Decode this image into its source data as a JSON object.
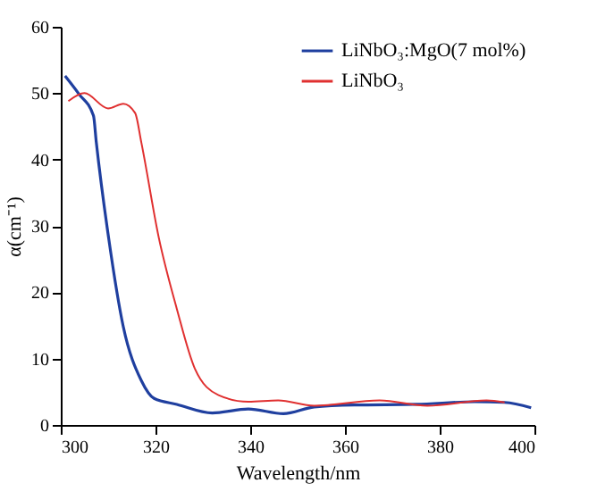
{
  "chart_data": {
    "type": "line",
    "xlabel": "Wavelength/nm",
    "ylabel": "α(cm⁻¹)",
    "xlim": [
      300,
      400
    ],
    "ylim": [
      0,
      60
    ],
    "xticks": [
      300,
      320,
      340,
      360,
      380,
      400
    ],
    "yticks": [
      0,
      10,
      20,
      30,
      40,
      50,
      60
    ],
    "grid": false,
    "legend": "top right",
    "marker": "none",
    "line_style": "solid",
    "series": [
      {
        "name": "LiNbO₃:MgO(7 mol%)",
        "color": "#1f3f9f",
        "x": [
          300.9,
          303.8,
          306.9,
          307.5,
          310.1,
          313.2,
          317,
          319.7,
          324.5,
          332,
          339.6,
          347,
          353.5,
          362,
          375,
          387.4,
          393.7,
          399.3
        ],
        "values": [
          52.6,
          49.9,
          46.6,
          42.6,
          28.2,
          14.8,
          6.7,
          4,
          3.1,
          1.8,
          2.4,
          1.7,
          2.7,
          3,
          3.1,
          3.5,
          3.4,
          2.6
        ]
      },
      {
        "name": "LiNbO₃",
        "color": "#e03030",
        "x": [
          301.6,
          305,
          310,
          313.2,
          315.7,
          317,
          320.7,
          324.5,
          328.3,
          333.3,
          339.6,
          345.9,
          353.5,
          367.3,
          377.4,
          389.9,
          393.7
        ],
        "values": [
          48.8,
          50,
          47.7,
          48.4,
          47,
          42.6,
          28.2,
          17.5,
          8.5,
          4.5,
          3.5,
          3.7,
          2.9,
          3.7,
          2.9,
          3.7,
          3.4
        ]
      }
    ]
  }
}
